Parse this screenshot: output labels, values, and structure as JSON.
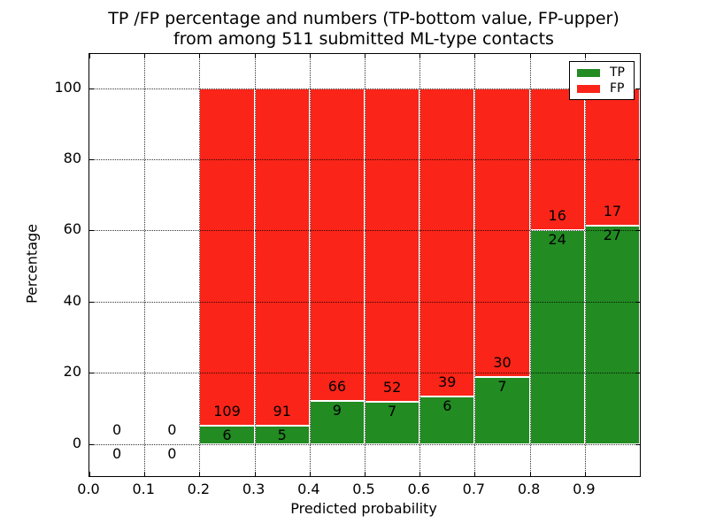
{
  "chart_data": {
    "type": "bar",
    "stacked": true,
    "normalized_to_percent": true,
    "title": "TP /FP percentage and numbers (TP-bottom value, FP-upper)",
    "title_line2": "from among 511 submitted ML-type contacts",
    "xlabel": "Predicted probability",
    "ylabel": "Percentage",
    "x_tick_vals": [
      0.0,
      0.1,
      0.2,
      0.3,
      0.4,
      0.5,
      0.6,
      0.7,
      0.8,
      0.9
    ],
    "x_tick_labels": [
      "0.0",
      "0.1",
      "0.2",
      "0.3",
      "0.4",
      "0.5",
      "0.6",
      "0.7",
      "0.8",
      "0.9"
    ],
    "y_tick_vals": [
      0,
      20,
      40,
      60,
      80,
      100
    ],
    "y_tick_labels": [
      "0",
      "20",
      "40",
      "60",
      "80",
      "100"
    ],
    "xlim": [
      0.0,
      1.0
    ],
    "ylim": [
      -9,
      109.5
    ],
    "grid": "dotted",
    "legend": {
      "position": "upper right",
      "entries": [
        {
          "label": "TP",
          "color": "#228b22"
        },
        {
          "label": "FP",
          "color": "#fa2418"
        }
      ]
    },
    "series_note": "TP count labeled below segment boundary, FP count labeled above; bars show TP percentage of bin total",
    "bins": [
      {
        "x0": 0.0,
        "x1": 0.1,
        "tp": 0,
        "fp": 0,
        "tp_pct": 0
      },
      {
        "x0": 0.1,
        "x1": 0.2,
        "tp": 0,
        "fp": 0,
        "tp_pct": 0
      },
      {
        "x0": 0.2,
        "x1": 0.3,
        "tp": 6,
        "fp": 109,
        "tp_pct": 5.2
      },
      {
        "x0": 0.3,
        "x1": 0.4,
        "tp": 5,
        "fp": 91,
        "tp_pct": 5.2
      },
      {
        "x0": 0.4,
        "x1": 0.5,
        "tp": 9,
        "fp": 66,
        "tp_pct": 12.0
      },
      {
        "x0": 0.5,
        "x1": 0.6,
        "tp": 7,
        "fp": 52,
        "tp_pct": 11.9
      },
      {
        "x0": 0.6,
        "x1": 0.7,
        "tp": 6,
        "fp": 39,
        "tp_pct": 13.3
      },
      {
        "x0": 0.7,
        "x1": 0.8,
        "tp": 7,
        "fp": 30,
        "tp_pct": 18.9
      },
      {
        "x0": 0.8,
        "x1": 0.9,
        "tp": 24,
        "fp": 16,
        "tp_pct": 60.0
      },
      {
        "x0": 0.9,
        "x1": 1.0,
        "tp": 27,
        "fp": 17,
        "tp_pct": 61.4
      }
    ],
    "colors": {
      "tp_bar": "#228b22",
      "fp_bar": "#fa2418",
      "bar_edge": "#ffffff",
      "grid": "#000000",
      "text": "#000000",
      "background": "#ffffff"
    }
  }
}
